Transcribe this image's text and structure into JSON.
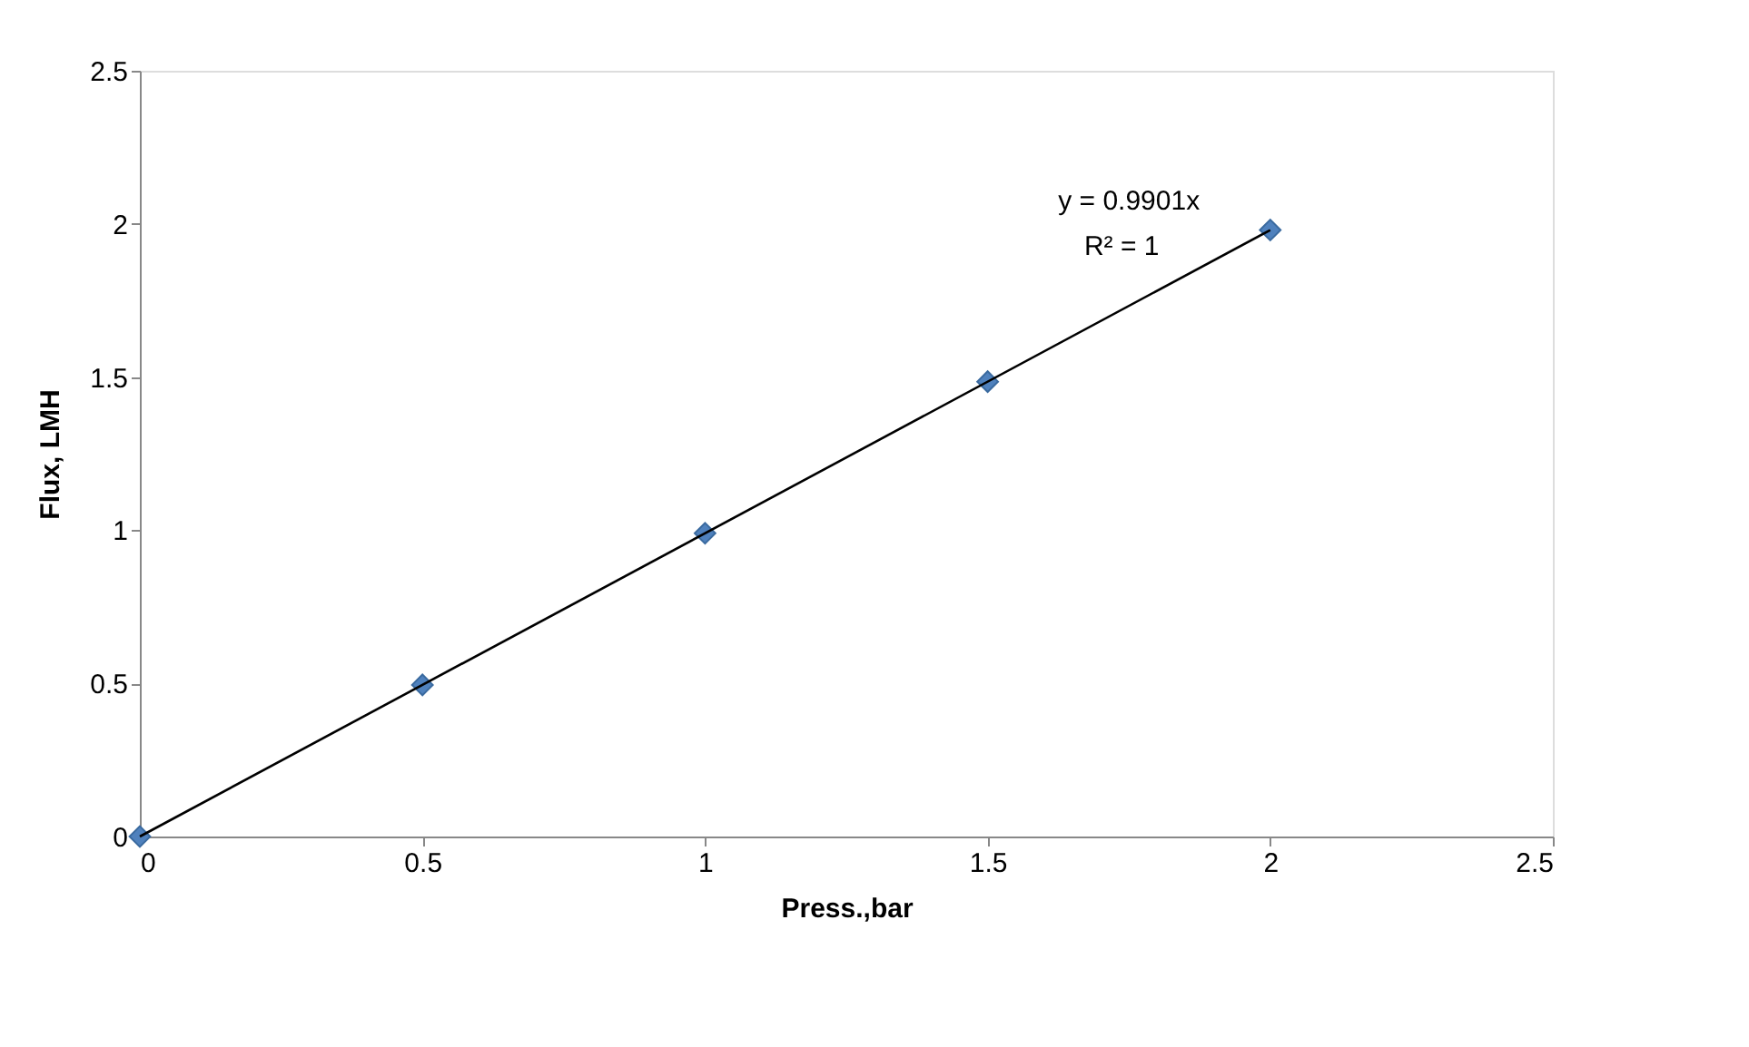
{
  "chart_data": {
    "type": "scatter",
    "xlabel": "Press.,bar",
    "ylabel": "Flux, LMH",
    "xlim": [
      0,
      2.5
    ],
    "xticks": [
      0,
      0.5,
      1,
      1.5,
      2,
      2.5
    ],
    "ylim": [
      0,
      2.5
    ],
    "yticks": [
      0,
      0.5,
      1,
      1.5,
      2,
      2.5
    ],
    "grid": false,
    "series": [
      {
        "color": "#4f81bd",
        "marker": "diamond",
        "x": [
          0,
          0.5,
          1,
          1.5,
          2
        ],
        "values": [
          0,
          0.495,
          0.99,
          1.485,
          1.98
        ]
      },
      {
        "type": "line",
        "color": "#000000",
        "marker": "none",
        "line_style": "solid",
        "x": [
          0,
          2
        ],
        "values": [
          0,
          1.98
        ]
      }
    ],
    "annotations": [
      "y = 0.9901x",
      "R² = 1"
    ]
  }
}
